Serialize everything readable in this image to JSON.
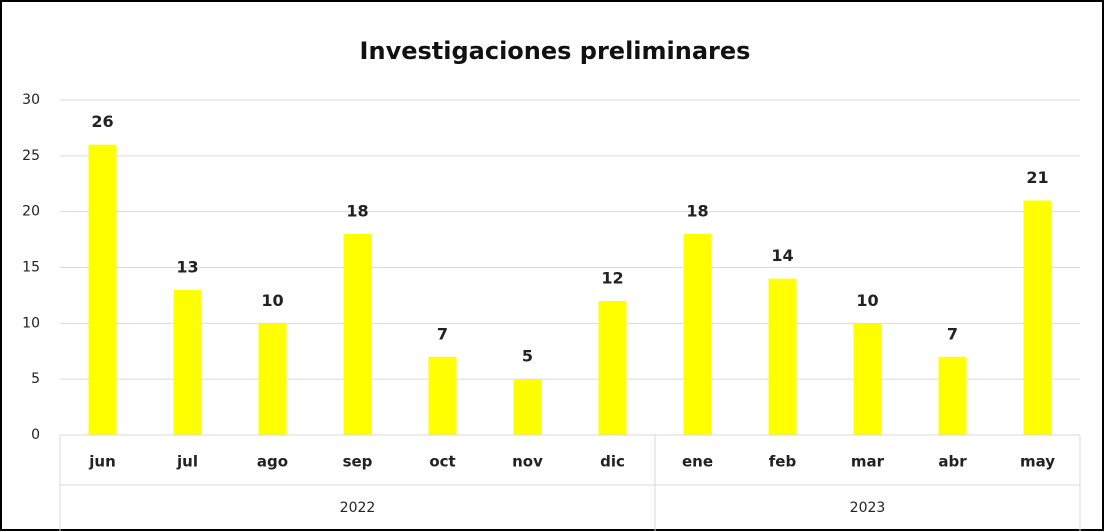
{
  "chart_data": {
    "type": "bar",
    "title": "Investigaciones preliminares",
    "categories": [
      "jun",
      "jul",
      "ago",
      "sep",
      "oct",
      "nov",
      "dic",
      "ene",
      "feb",
      "mar",
      "abr",
      "may"
    ],
    "groups": [
      {
        "label": "2022",
        "count": 7
      },
      {
        "label": "2023",
        "count": 5
      }
    ],
    "values": [
      26,
      13,
      10,
      18,
      7,
      5,
      12,
      18,
      14,
      10,
      7,
      21
    ],
    "color": "#ffff00",
    "ylim": [
      0,
      30
    ],
    "yticks": [
      0,
      5,
      10,
      15,
      20,
      25,
      30
    ],
    "grid": true
  }
}
